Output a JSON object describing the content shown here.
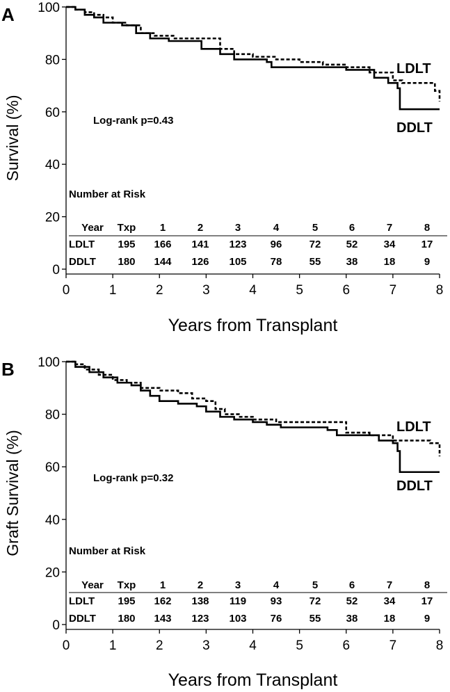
{
  "chart_data": [
    {
      "type": "line",
      "panel_label": "A",
      "ylabel": "Survival (%)",
      "xlabel": "Years from Transplant",
      "xlim": [
        0,
        8
      ],
      "ylim": [
        0,
        100
      ],
      "xticks": [
        "0",
        "1",
        "2",
        "3",
        "4",
        "5",
        "6",
        "7",
        "8"
      ],
      "yticks": [
        "0",
        "20",
        "40",
        "60",
        "80",
        "100"
      ],
      "annotation": "Log-rank p=0.43",
      "series": [
        {
          "name": "LDLT",
          "style": "dashed",
          "points": [
            [
              0,
              100
            ],
            [
              0.2,
              99
            ],
            [
              0.4,
              98
            ],
            [
              0.6,
              97
            ],
            [
              0.8,
              96
            ],
            [
              1.0,
              94
            ],
            [
              1.3,
              93
            ],
            [
              1.6,
              90
            ],
            [
              1.9,
              89
            ],
            [
              2.3,
              88
            ],
            [
              2.8,
              88
            ],
            [
              3.2,
              88
            ],
            [
              3.3,
              84
            ],
            [
              3.6,
              82
            ],
            [
              4.0,
              81
            ],
            [
              4.5,
              80
            ],
            [
              5.0,
              79
            ],
            [
              5.5,
              78
            ],
            [
              6.0,
              77
            ],
            [
              6.5,
              75
            ],
            [
              7.0,
              72
            ],
            [
              7.2,
              71
            ],
            [
              7.8,
              71
            ],
            [
              7.9,
              68
            ],
            [
              8.0,
              64
            ]
          ]
        },
        {
          "name": "DDLT",
          "style": "solid",
          "points": [
            [
              0,
              100
            ],
            [
              0.2,
              99
            ],
            [
              0.4,
              97
            ],
            [
              0.6,
              96
            ],
            [
              0.8,
              94
            ],
            [
              1.2,
              93
            ],
            [
              1.5,
              90
            ],
            [
              1.8,
              88
            ],
            [
              2.2,
              87
            ],
            [
              2.6,
              87
            ],
            [
              2.9,
              84
            ],
            [
              3.3,
              82
            ],
            [
              3.6,
              80
            ],
            [
              4.0,
              80
            ],
            [
              4.3,
              79
            ],
            [
              4.4,
              77
            ],
            [
              5.0,
              77
            ],
            [
              5.5,
              77
            ],
            [
              6.0,
              76
            ],
            [
              6.5,
              76
            ],
            [
              6.6,
              73
            ],
            [
              6.9,
              71
            ],
            [
              7.1,
              69
            ],
            [
              7.15,
              61
            ],
            [
              8.0,
              61
            ]
          ]
        }
      ],
      "risk_table": {
        "title": "Number at Risk",
        "header": [
          "Year",
          "Txp",
          "1",
          "2",
          "3",
          "4",
          "5",
          "6",
          "7",
          "8"
        ],
        "rows": [
          {
            "label": "LDLT",
            "values": [
              "195",
              "166",
              "141",
              "123",
              "96",
              "72",
              "52",
              "34",
              "17"
            ]
          },
          {
            "label": "DDLT",
            "values": [
              "180",
              "144",
              "126",
              "105",
              "78",
              "55",
              "38",
              "18",
              "9"
            ]
          }
        ]
      }
    },
    {
      "type": "line",
      "panel_label": "B",
      "ylabel": "Graft Survival (%)",
      "xlabel": "Years from Transplant",
      "xlim": [
        0,
        8
      ],
      "ylim": [
        0,
        100
      ],
      "xticks": [
        "0",
        "1",
        "2",
        "3",
        "4",
        "5",
        "6",
        "7",
        "8"
      ],
      "yticks": [
        "0",
        "20",
        "40",
        "60",
        "80",
        "100"
      ],
      "annotation": "Log-rank p=0.32",
      "series": [
        {
          "name": "LDLT",
          "style": "dashed",
          "points": [
            [
              0,
              100
            ],
            [
              0.2,
              99
            ],
            [
              0.4,
              97
            ],
            [
              0.7,
              95
            ],
            [
              1.0,
              93
            ],
            [
              1.3,
              92
            ],
            [
              1.6,
              90
            ],
            [
              2.0,
              89
            ],
            [
              2.4,
              88
            ],
            [
              2.7,
              86
            ],
            [
              3.0,
              85
            ],
            [
              3.2,
              82
            ],
            [
              3.4,
              80
            ],
            [
              3.7,
              79
            ],
            [
              4.0,
              78
            ],
            [
              4.5,
              77
            ],
            [
              5.0,
              77
            ],
            [
              5.5,
              77
            ],
            [
              6.0,
              73
            ],
            [
              6.5,
              72
            ],
            [
              7.0,
              70
            ],
            [
              7.5,
              70
            ],
            [
              7.8,
              69
            ],
            [
              8.0,
              64
            ]
          ]
        },
        {
          "name": "DDLT",
          "style": "solid",
          "points": [
            [
              0,
              100
            ],
            [
              0.2,
              98
            ],
            [
              0.5,
              96
            ],
            [
              0.8,
              94
            ],
            [
              1.1,
              92
            ],
            [
              1.4,
              91
            ],
            [
              1.6,
              89
            ],
            [
              1.8,
              87
            ],
            [
              2.0,
              85
            ],
            [
              2.4,
              84
            ],
            [
              2.8,
              83
            ],
            [
              3.0,
              81
            ],
            [
              3.3,
              79
            ],
            [
              3.6,
              78
            ],
            [
              4.0,
              77
            ],
            [
              4.3,
              76
            ],
            [
              4.6,
              75
            ],
            [
              5.0,
              75
            ],
            [
              5.5,
              75
            ],
            [
              5.6,
              74
            ],
            [
              5.8,
              72
            ],
            [
              6.5,
              72
            ],
            [
              6.7,
              70
            ],
            [
              7.0,
              69
            ],
            [
              7.1,
              66
            ],
            [
              7.15,
              58
            ],
            [
              8.0,
              58
            ]
          ]
        }
      ],
      "risk_table": {
        "title": "Number at Risk",
        "header": [
          "Year",
          "Txp",
          "1",
          "2",
          "3",
          "4",
          "5",
          "6",
          "7",
          "8"
        ],
        "rows": [
          {
            "label": "LDLT",
            "values": [
              "195",
              "162",
              "138",
              "119",
              "93",
              "72",
              "52",
              "34",
              "17"
            ]
          },
          {
            "label": "DDLT",
            "values": [
              "180",
              "143",
              "123",
              "103",
              "76",
              "55",
              "38",
              "18",
              "9"
            ]
          }
        ]
      }
    }
  ]
}
